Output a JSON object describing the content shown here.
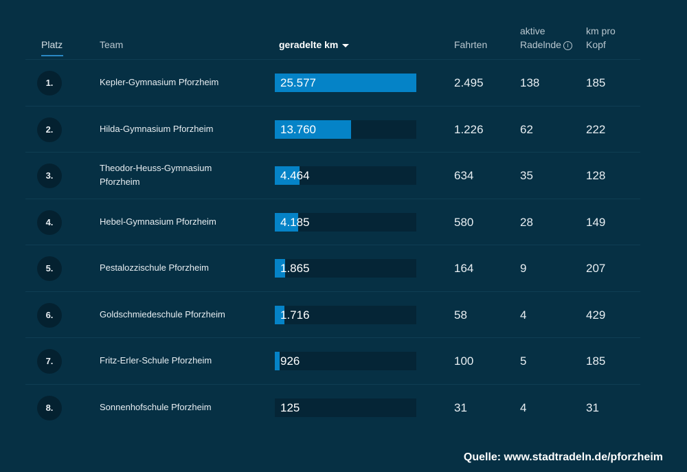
{
  "header": {
    "platz": "Platz",
    "team": "Team",
    "km": "geradelte km",
    "fahrten": "Fahrten",
    "aktive_line1": "aktive",
    "aktive_line2": "Radelnde",
    "kmpk_line1": "km pro",
    "kmpk_line2": "Kopf"
  },
  "chart_data": {
    "type": "table",
    "bar_column": "geradelte km",
    "bar_max": 25577,
    "columns": [
      "Platz",
      "Team",
      "geradelte km",
      "Fahrten",
      "aktive Radelnde",
      "km pro Kopf"
    ],
    "rows": [
      {
        "rank": "1.",
        "team": "Kepler-Gymnasium Pforzheim",
        "km": 25577,
        "km_label": "25.577",
        "fahrten": "2.495",
        "aktive": "138",
        "km_pro_kopf": "185"
      },
      {
        "rank": "2.",
        "team": "Hilda-Gymnasium Pforzheim",
        "km": 13760,
        "km_label": "13.760",
        "fahrten": "1.226",
        "aktive": "62",
        "km_pro_kopf": "222"
      },
      {
        "rank": "3.",
        "team": "Theodor-Heuss-Gymnasium Pforzheim",
        "km": 4464,
        "km_label": "4.464",
        "fahrten": "634",
        "aktive": "35",
        "km_pro_kopf": "128"
      },
      {
        "rank": "4.",
        "team": "Hebel-Gymnasium Pforzheim",
        "km": 4185,
        "km_label": "4.185",
        "fahrten": "580",
        "aktive": "28",
        "km_pro_kopf": "149"
      },
      {
        "rank": "5.",
        "team": "Pestalozzischule Pforzheim",
        "km": 1865,
        "km_label": "1.865",
        "fahrten": "164",
        "aktive": "9",
        "km_pro_kopf": "207"
      },
      {
        "rank": "6.",
        "team": "Goldschmiedeschule Pforzheim",
        "km": 1716,
        "km_label": "1.716",
        "fahrten": "58",
        "aktive": "4",
        "km_pro_kopf": "429"
      },
      {
        "rank": "7.",
        "team": "Fritz-Erler-Schule Pforzheim",
        "km": 926,
        "km_label": "926",
        "fahrten": "100",
        "aktive": "5",
        "km_pro_kopf": "185"
      },
      {
        "rank": "8.",
        "team": "Sonnenhofschule Pforzheim",
        "km": 125,
        "km_label": "125",
        "fahrten": "31",
        "aktive": "4",
        "km_pro_kopf": "31"
      }
    ]
  },
  "source": "Quelle: www.stadtradeln.de/pforzheim",
  "colors": {
    "background": "#063044",
    "bar_fill": "#0583c7",
    "bar_track": "#052536",
    "rank_badge": "#042130",
    "sort_underline": "#2a88c4"
  }
}
